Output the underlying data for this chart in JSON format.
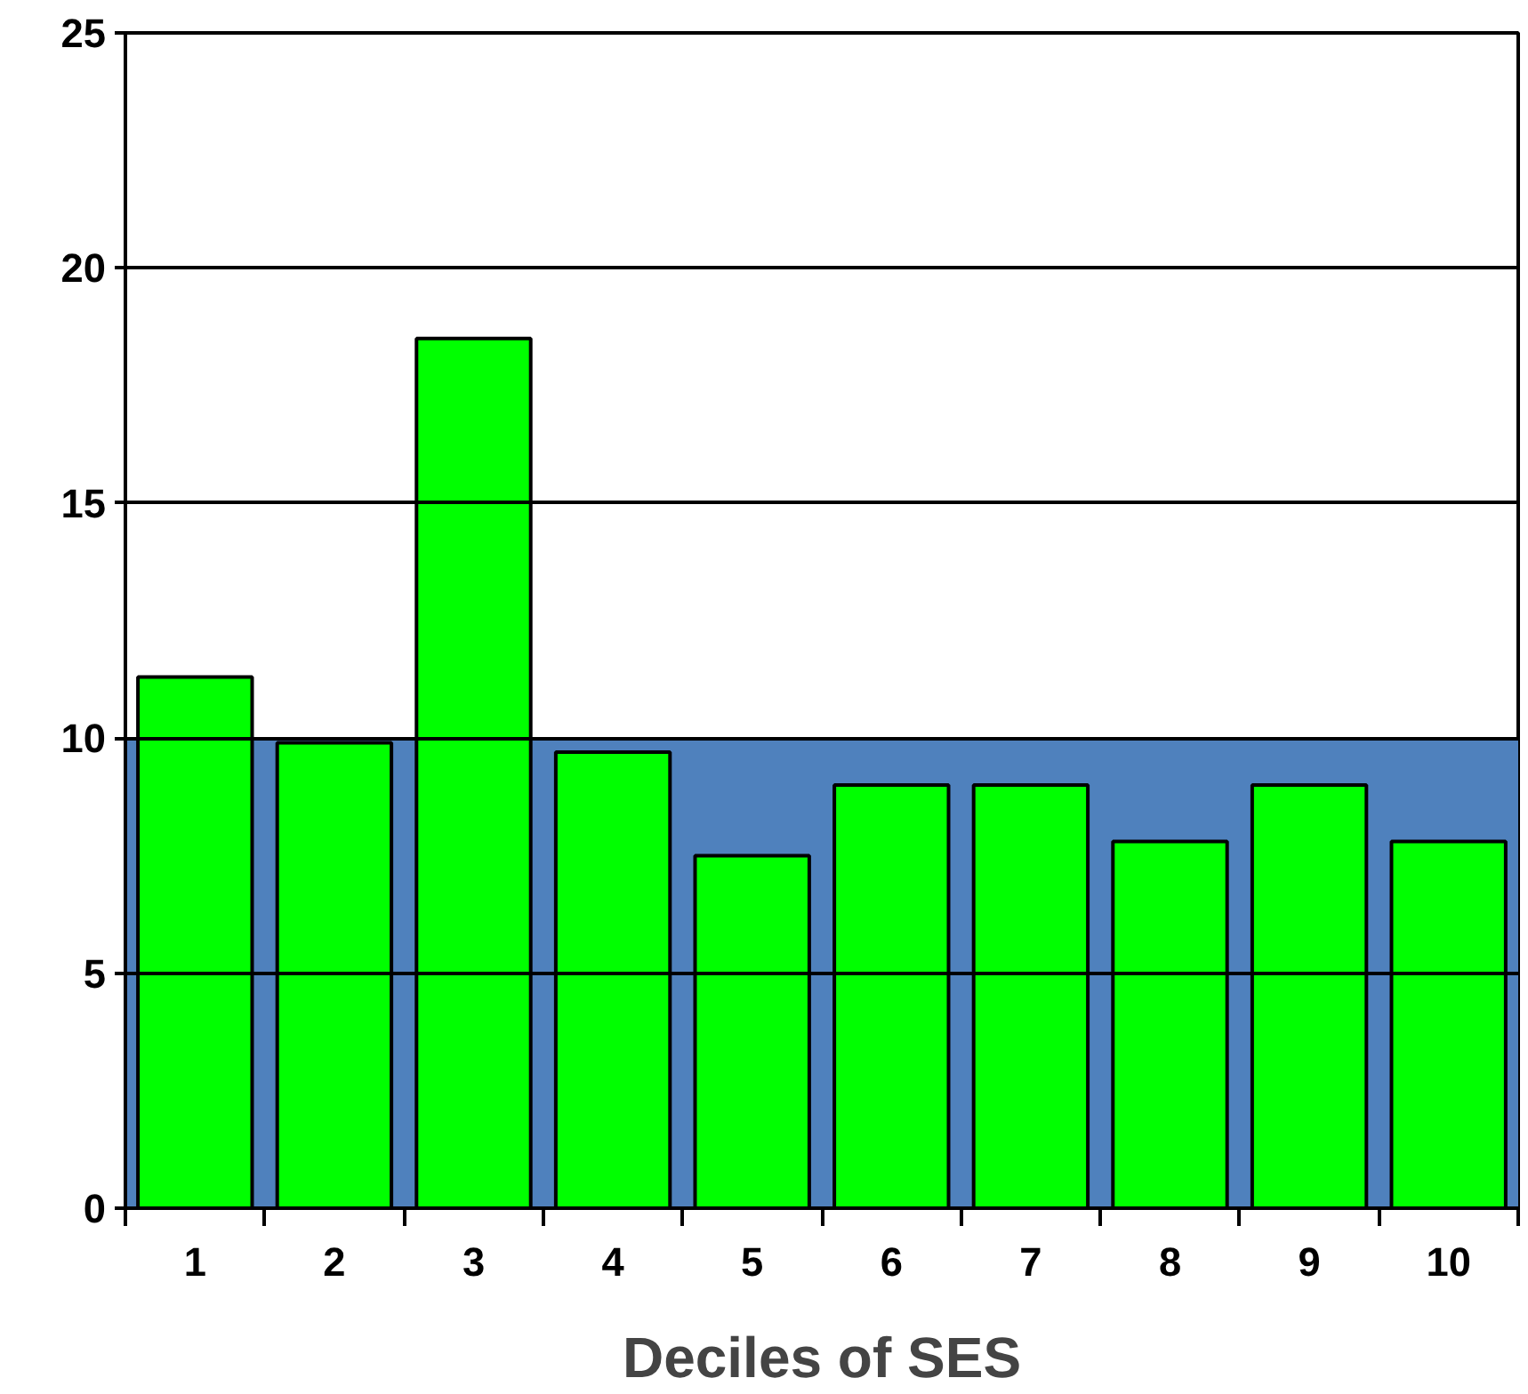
{
  "chart_data": {
    "type": "bar",
    "xlabel": "Deciles of SES",
    "categories": [
      "1",
      "2",
      "3",
      "4",
      "5",
      "6",
      "7",
      "8",
      "9",
      "10"
    ],
    "values": [
      11.3,
      9.9,
      18.5,
      9.7,
      7.5,
      9.0,
      9.0,
      7.8,
      9.0,
      7.8
    ],
    "color": "#00ff00",
    "ylim": [
      0,
      25
    ],
    "yticks": [
      0,
      5,
      10,
      15,
      20,
      25
    ],
    "grid": "y",
    "bands": [
      {
        "axis": "y",
        "from": 0,
        "to": 10,
        "color": "#4f81bd"
      }
    ]
  }
}
